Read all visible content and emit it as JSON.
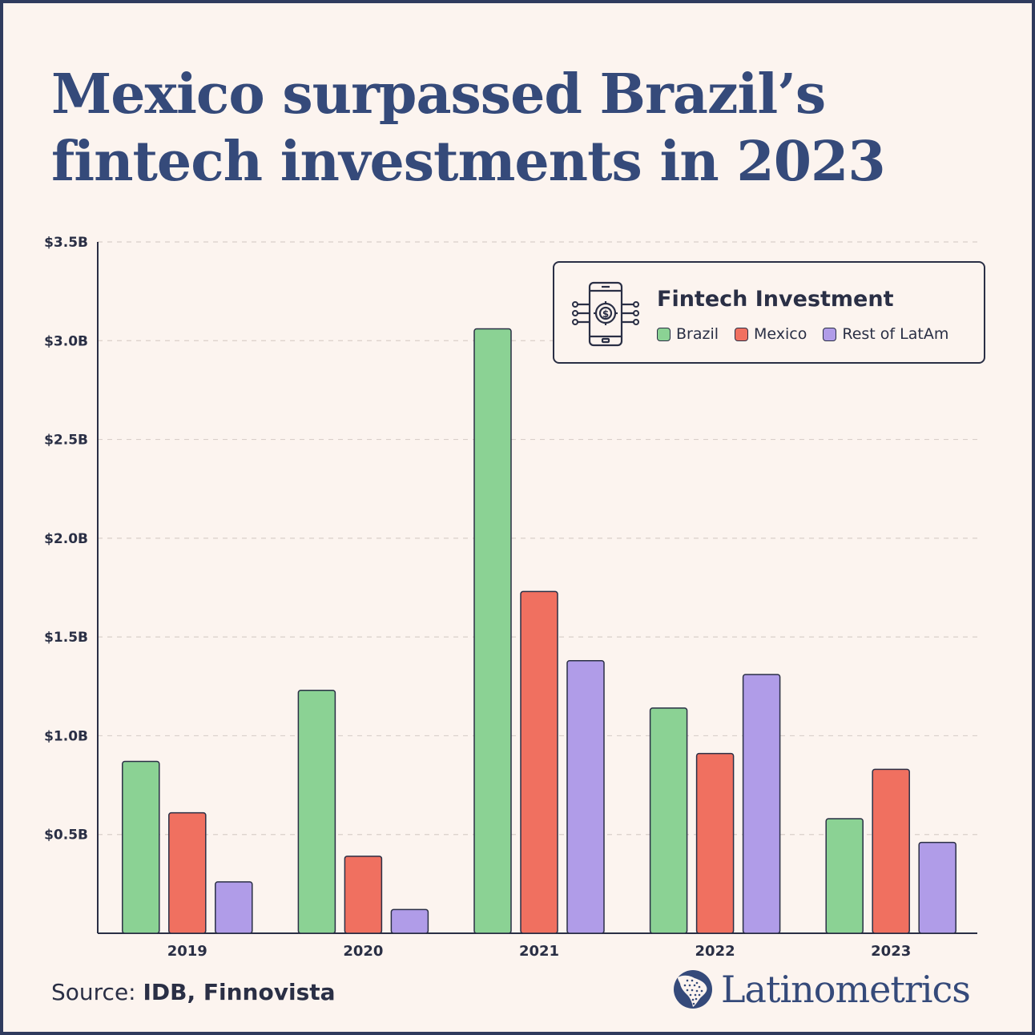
{
  "title": "Mexico surpassed Brazil’s fintech investments in 2023",
  "legend": {
    "title": "Fintech Investment",
    "icon": "smartphone-dollar-gear-icon",
    "items": [
      {
        "label": "Brazil",
        "color": "#8bd294"
      },
      {
        "label": "Mexico",
        "color": "#f07060"
      },
      {
        "label": "Rest of LatAm",
        "color": "#b09ce8"
      }
    ]
  },
  "source": {
    "prefix": "Source:",
    "names": "IDB, Finnovista"
  },
  "brand": {
    "name": "Latinometrics",
    "icon": "latin-america-map-logo-icon"
  },
  "chart_data": {
    "type": "bar",
    "categories": [
      "2019",
      "2020",
      "2021",
      "2022",
      "2023"
    ],
    "series": [
      {
        "name": "Brazil",
        "values": [
          0.87,
          1.23,
          3.06,
          1.14,
          0.58
        ]
      },
      {
        "name": "Mexico",
        "values": [
          0.61,
          0.39,
          1.73,
          0.91,
          0.83
        ]
      },
      {
        "name": "Rest of LatAm",
        "values": [
          0.26,
          0.12,
          1.38,
          1.31,
          0.46
        ]
      }
    ],
    "yticks": [
      0.5,
      1.0,
      1.5,
      2.0,
      2.5,
      3.0,
      3.5
    ],
    "ytick_labels": [
      "$0.5B",
      "$1.0B",
      "$1.5B",
      "$2.0B",
      "$2.5B",
      "$3.0B",
      "$3.5B"
    ],
    "ylim": [
      0,
      3.5
    ],
    "grid": true,
    "legend_position": "top-right"
  }
}
